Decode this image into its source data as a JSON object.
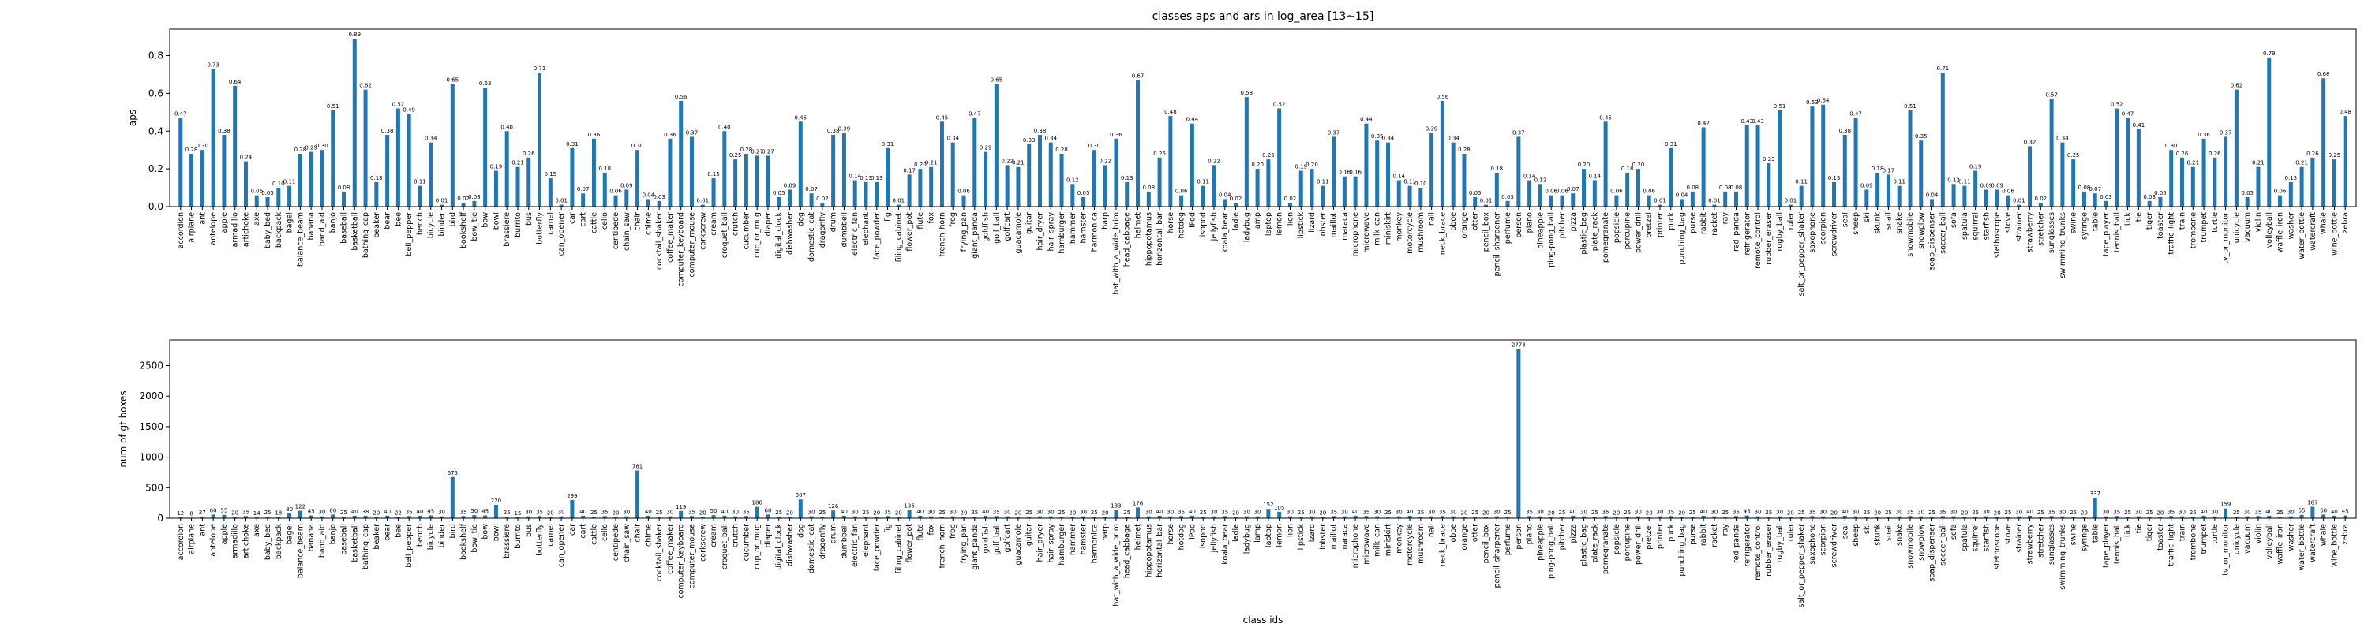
{
  "chart_data": [
    {
      "type": "bar",
      "title": "classes aps and ars in log_area [13~15]",
      "ylabel": "aps",
      "color": "#1f77b4",
      "categories": [
        "accordion",
        "airplane",
        "ant",
        "antelope",
        "apple",
        "armadillo",
        "artichoke",
        "axe",
        "baby_bed",
        "backpack",
        "bagel",
        "balance_beam",
        "banana",
        "band_aid",
        "banjo",
        "baseball",
        "basketball",
        "bathing_cap",
        "beaker",
        "bear",
        "bee",
        "bell_pepper",
        "bench",
        "bicycle",
        "binder",
        "bird",
        "bookshelf",
        "bow_tie",
        "bow",
        "bowl",
        "brassiere",
        "burrito",
        "bus",
        "butterfly",
        "camel",
        "can_opener",
        "car",
        "cart",
        "cattle",
        "cello",
        "centipede",
        "chain_saw",
        "chair",
        "chime",
        "cocktail_shaker",
        "coffee_maker",
        "computer_keyboard",
        "computer_mouse",
        "corkscrew",
        "cream",
        "croquet_ball",
        "crutch",
        "cucumber",
        "cup_or_mug",
        "diaper",
        "digital_clock",
        "dishwasher",
        "dog",
        "domestic_cat",
        "dragonfly",
        "drum",
        "dumbbell",
        "electric_fan",
        "elephant",
        "face_powder",
        "fig",
        "filing_cabinet",
        "flower_pot",
        "flute",
        "fox",
        "french_horn",
        "frog",
        "frying_pan",
        "giant_panda",
        "goldfish",
        "golf_ball",
        "golfcart",
        "guacamole",
        "guitar",
        "hair_dryer",
        "hair_spray",
        "hamburger",
        "hammer",
        "hamster",
        "harmonica",
        "harp",
        "hat_with_a_wide_brim",
        "head_cabbage",
        "helmet",
        "hippopotamus",
        "horizontal_bar",
        "horse",
        "hotdog",
        "iPod",
        "isopod",
        "jellyfish",
        "koala_bear",
        "ladle",
        "ladybug",
        "lamp",
        "laptop",
        "lemon",
        "lion",
        "lipstick",
        "lizard",
        "lobster",
        "maillot",
        "maraca",
        "microphone",
        "microwave",
        "milk_can",
        "miniskirt",
        "monkey",
        "motorcycle",
        "mushroom",
        "nail",
        "neck_brace",
        "oboe",
        "orange",
        "otter",
        "pencil_box",
        "pencil_sharpener",
        "perfume",
        "person",
        "piano",
        "pineapple",
        "ping-pong_ball",
        "pitcher",
        "pizza",
        "plastic_bag",
        "plate_rack",
        "pomegranate",
        "popsicle",
        "porcupine",
        "power_drill",
        "pretzel",
        "printer",
        "puck",
        "punching_bag",
        "purse",
        "rabbit",
        "racket",
        "ray",
        "red_panda",
        "refrigerator",
        "remote_control",
        "rubber_eraser",
        "rugby_ball",
        "ruler",
        "salt_or_pepper_shaker",
        "saxophone",
        "scorpion",
        "screwdriver",
        "seal",
        "sheep",
        "ski",
        "skunk",
        "snail",
        "snake",
        "snowmobile",
        "snowplow",
        "soap_dispenser",
        "soccer_ball",
        "sofa",
        "spatula",
        "squirrel",
        "starfish",
        "stethoscope",
        "stove",
        "strainer",
        "strawberry",
        "stretcher",
        "sunglasses",
        "swimming_trunks",
        "swine",
        "syringe",
        "table",
        "tape_player",
        "tennis_ball",
        "tick",
        "tie",
        "tiger",
        "toaster",
        "traffic_light",
        "train",
        "trombone",
        "trumpet",
        "turtle",
        "tv_or_monitor",
        "unicycle",
        "vacuum",
        "violin",
        "volleyball",
        "waffle_iron",
        "washer",
        "water_bottle",
        "watercraft",
        "whale",
        "wine_bottle",
        "zebra"
      ],
      "values": [
        0.47,
        0.28,
        0.3,
        0.73,
        0.38,
        0.64,
        0.24,
        0.06,
        0.05,
        0.1,
        0.11,
        0.28,
        0.29,
        0.3,
        0.51,
        0.08,
        0.89,
        0.62,
        0.13,
        0.38,
        0.52,
        0.49,
        0.11,
        0.34,
        0.01,
        0.65,
        0.02,
        0.03,
        0.63,
        0.19,
        0.4,
        0.21,
        0.26,
        0.71,
        0.15,
        0.01,
        0.31,
        0.07,
        0.36,
        0.18,
        0.06,
        0.09,
        0.3,
        0.04,
        0.03,
        0.36,
        0.56,
        0.37,
        0.01,
        0.15,
        0.4,
        0.25,
        0.28,
        0.27,
        0.27,
        0.05,
        0.09,
        0.45,
        0.07,
        0.02,
        0.38,
        0.39,
        0.14,
        0.13,
        0.13,
        0.31,
        0.01,
        0.17,
        0.2,
        0.21,
        0.45,
        0.34,
        0.06,
        0.47,
        0.29,
        0.65,
        0.22,
        0.21,
        0.33,
        0.38,
        0.34,
        0.28,
        0.12,
        0.05,
        0.3,
        0.22,
        0.36,
        0.13,
        0.67,
        0.08,
        0.26,
        0.48,
        0.06,
        0.44,
        0.11,
        0.22,
        0.04,
        0.02,
        0.58,
        0.2,
        0.25,
        0.52,
        0.02,
        0.19,
        0.2,
        0.11,
        0.37,
        0.16,
        0.16,
        0.44,
        0.35,
        0.34,
        0.14,
        0.11,
        0.1,
        0.39,
        0.56,
        0.34,
        0.28,
        0.05,
        0.01,
        0.18,
        0.03,
        0.37,
        0.14,
        0.12,
        0.06,
        0.06,
        0.07,
        0.2,
        0.14,
        0.45,
        0.06,
        0.18,
        0.2,
        0.06,
        0.01,
        0.31,
        0.04,
        0.08,
        0.42,
        0.01,
        0.08,
        0.08,
        0.43,
        0.43,
        0.23,
        0.51,
        0.01,
        0.11,
        0.53,
        0.54,
        0.13,
        0.38,
        0.47,
        0.09,
        0.18,
        0.17,
        0.11,
        0.51,
        0.35,
        0.04,
        0.71,
        0.12,
        0.11,
        0.19,
        0.09,
        0.09,
        0.06,
        0.01,
        0.32,
        0.02,
        0.57,
        0.34,
        0.25,
        0.08,
        0.07,
        0.03,
        0.52,
        0.47,
        0.41,
        0.03,
        0.05,
        0.3,
        0.26,
        0.21,
        0.36,
        0.26,
        0.37,
        0.62,
        0.05,
        0.21,
        0.79,
        0.06,
        0.13,
        0.21,
        0.26,
        0.68,
        0.25,
        0.48
      ],
      "value_labels": [
        "0.47",
        "0.28",
        "0.30",
        "0.73",
        "0.38",
        "0.64",
        "0.24",
        "0.06",
        "0.05",
        "0.10",
        "0.11",
        "0.28",
        "0.29",
        "0.30",
        "0.51",
        "0.08",
        "0.89",
        "0.62",
        "0.13",
        "0.38",
        "0.52",
        "0.49",
        "0.11",
        "0.34",
        "0.01",
        "0.65",
        "0.02",
        "0.03",
        "0.63",
        "0.19",
        "0.40",
        "0.21",
        "0.26",
        "0.71",
        "0.15",
        "0.01",
        "0.31",
        "0.07",
        "0.36",
        "0.18",
        "0.06",
        "0.09",
        "0.30",
        "0.04",
        "0.03",
        "0.36",
        "0.56",
        "0.37",
        "0.01",
        "0.15",
        "0.40",
        "0.25",
        "0.28",
        "0.27",
        "0.27",
        "0.05",
        "0.09",
        "0.45",
        "0.07",
        "0.02",
        "0.38",
        "0.39",
        "0.14",
        "0.13",
        "0.13",
        "0.31",
        "0.01",
        "0.17",
        "0.20",
        "0.21",
        "0.45",
        "0.34",
        "0.06",
        "0.47",
        "0.29",
        "0.65",
        "0.22",
        "0.21",
        "0.33",
        "0.38",
        "0.34",
        "0.28",
        "0.12",
        "0.05",
        "0.30",
        "0.22",
        "0.36",
        "0.13",
        "0.67",
        "0.08",
        "0.26",
        "0.48",
        "0.06",
        "0.44",
        "0.11",
        "0.22",
        "0.04",
        "0.02",
        "0.58",
        "0.20",
        "0.25",
        "0.52",
        "0.02",
        "0.19",
        "0.20",
        "0.11",
        "0.37",
        "0.16",
        "0.16",
        "0.44",
        "0.35",
        "0.34",
        "0.14",
        "0.11",
        "0.10",
        "0.39",
        "0.56",
        "0.34",
        "0.28",
        "0.05",
        "0.01",
        "0.18",
        "0.03",
        "0.37",
        "0.14",
        "0.12",
        "0.06",
        "0.06",
        "0.07",
        "0.20",
        "0.14",
        "0.45",
        "0.06",
        "0.18",
        "0.20",
        "0.06",
        "0.01",
        "0.31",
        "0.04",
        "0.08",
        "0.42",
        "0.01",
        "0.08",
        "0.08",
        "0.43",
        "0.43",
        "0.23",
        "0.51",
        "0.01",
        "0.11",
        "0.53",
        "0.54",
        "0.13",
        "0.38",
        "0.47",
        "0.09",
        "0.18",
        "0.17",
        "0.11",
        "0.51",
        "0.35",
        "0.04",
        "0.71",
        "0.12",
        "0.11",
        "0.19",
        "0.09",
        "0.09",
        "0.06",
        "0.01",
        "0.32",
        "0.02",
        "0.57",
        "0.34",
        "0.25",
        "0.08",
        "0.07",
        "0.03",
        "0.52",
        "0.47",
        "0.41",
        "0.03",
        "0.05",
        "0.30",
        "0.26",
        "0.21",
        "0.36",
        "0.26",
        "0.37",
        "0.62",
        "0.05",
        "0.21",
        "0.79",
        "0.06",
        "0.13",
        "0.21",
        "0.26",
        "0.68",
        "0.25",
        "0.48"
      ],
      "ylim": [
        0,
        0.94
      ],
      "yticks": [
        {
          "value": 0,
          "label": "0.0"
        },
        0.2,
        0.4,
        0.6,
        0.8
      ]
    },
    {
      "type": "bar",
      "ylabel": "num of gt boxes",
      "xlabel": "class ids",
      "color": "#1f77b4",
      "categories": [
        "accordion",
        "airplane",
        "ant",
        "antelope",
        "apple",
        "armadillo",
        "artichoke",
        "axe",
        "baby_bed",
        "backpack",
        "bagel",
        "balance_beam",
        "banana",
        "band_aid",
        "banjo",
        "baseball",
        "basketball",
        "bathing_cap",
        "beaker",
        "bear",
        "bee",
        "bell_pepper",
        "bench",
        "bicycle",
        "binder",
        "bird",
        "bookshelf",
        "bow_tie",
        "bow",
        "bowl",
        "brassiere",
        "burrito",
        "bus",
        "butterfly",
        "camel",
        "can_opener",
        "car",
        "cart",
        "cattle",
        "cello",
        "centipede",
        "chain_saw",
        "chair",
        "chime",
        "cocktail_shaker",
        "coffee_maker",
        "computer_keyboard",
        "computer_mouse",
        "corkscrew",
        "cream",
        "croquet_ball",
        "crutch",
        "cucumber",
        "cup_or_mug",
        "diaper",
        "digital_clock",
        "dishwasher",
        "dog",
        "domestic_cat",
        "dragonfly",
        "drum",
        "dumbbell",
        "electric_fan",
        "elephant",
        "face_powder",
        "fig",
        "filing_cabinet",
        "flower_pot",
        "flute",
        "fox",
        "french_horn",
        "frog",
        "frying_pan",
        "giant_panda",
        "goldfish",
        "golf_ball",
        "golfcart",
        "guacamole",
        "guitar",
        "hair_dryer",
        "hair_spray",
        "hamburger",
        "hammer",
        "hamster",
        "harmonica",
        "harp",
        "hat_with_a_wide_brim",
        "head_cabbage",
        "helmet",
        "hippopotamus",
        "horizontal_bar",
        "horse",
        "hotdog",
        "iPod",
        "isopod",
        "jellyfish",
        "koala_bear",
        "ladle",
        "ladybug",
        "lamp",
        "laptop",
        "lemon",
        "lion",
        "lipstick",
        "lizard",
        "lobster",
        "maillot",
        "maraca",
        "microphone",
        "microwave",
        "milk_can",
        "miniskirt",
        "monkey",
        "motorcycle",
        "mushroom",
        "nail",
        "neck_brace",
        "oboe",
        "orange",
        "otter",
        "pencil_box",
        "pencil_sharpener",
        "perfume",
        "person",
        "piano",
        "pineapple",
        "ping-pong_ball",
        "pitcher",
        "pizza",
        "plastic_bag",
        "plate_rack",
        "pomegranate",
        "popsicle",
        "porcupine",
        "power_drill",
        "pretzel",
        "printer",
        "puck",
        "punching_bag",
        "purse",
        "rabbit",
        "racket",
        "ray",
        "red_panda",
        "refrigerator",
        "remote_control",
        "rubber_eraser",
        "rugby_ball",
        "ruler",
        "salt_or_pepper_shaker",
        "saxophone",
        "scorpion",
        "screwdriver",
        "seal",
        "sheep",
        "ski",
        "skunk",
        "snail",
        "snake",
        "snowmobile",
        "snowplow",
        "soap_dispenser",
        "soccer_ball",
        "sofa",
        "spatula",
        "squirrel",
        "starfish",
        "stethoscope",
        "stove",
        "strainer",
        "strawberry",
        "stretcher",
        "sunglasses",
        "swimming_trunks",
        "swine",
        "syringe",
        "table",
        "tape_player",
        "tennis_ball",
        "tick",
        "tie",
        "tiger",
        "toaster",
        "traffic_light",
        "train",
        "trombone",
        "trumpet",
        "turtle",
        "tv_or_monitor",
        "unicycle",
        "vacuum",
        "violin",
        "volleyball",
        "waffle_iron",
        "washer",
        "water_bottle",
        "watercraft",
        "whale",
        "wine_bottle",
        "zebra"
      ],
      "values": [
        12,
        8,
        27,
        60,
        55,
        20,
        35,
        14,
        25,
        18,
        80,
        122,
        45,
        30,
        60,
        25,
        40,
        38,
        20,
        40,
        22,
        35,
        40,
        45,
        30,
        675,
        35,
        50,
        45,
        220,
        25,
        15,
        30,
        35,
        20,
        30,
        299,
        40,
        25,
        35,
        20,
        30,
        781,
        40,
        25,
        30,
        119,
        35,
        20,
        50,
        40,
        30,
        35,
        186,
        60,
        25,
        20,
        307,
        30,
        25,
        126,
        40,
        30,
        25,
        20,
        35,
        20,
        136,
        40,
        30,
        25,
        30,
        20,
        25,
        40,
        35,
        30,
        20,
        25,
        30,
        30,
        25,
        20,
        30,
        25,
        20,
        133,
        25,
        176,
        30,
        40,
        30,
        35,
        40,
        25,
        30,
        35,
        20,
        30,
        30,
        152,
        105,
        30,
        25,
        30,
        20,
        35,
        30,
        40,
        35,
        30,
        25,
        30,
        40,
        25,
        30,
        35,
        30,
        20,
        25,
        20,
        30,
        25,
        2773,
        35,
        30,
        20,
        25,
        40,
        30,
        25,
        35,
        20,
        25,
        30,
        20,
        30,
        35,
        20,
        25,
        40,
        30,
        25,
        35,
        45,
        30,
        25,
        30,
        20,
        25,
        35,
        30,
        20,
        40,
        30,
        25,
        20,
        25,
        30,
        35,
        30,
        25,
        35,
        30,
        20,
        25,
        30,
        20,
        25,
        30,
        40,
        25,
        35,
        30,
        25,
        20,
        337,
        30,
        35,
        25,
        30,
        25,
        20,
        35,
        30,
        25,
        40,
        30,
        159,
        25,
        30,
        35,
        40,
        25,
        30,
        55,
        187,
        60,
        40,
        45
      ],
      "ylim": [
        0,
        2920
      ],
      "yticks": [
        0,
        500,
        1000,
        1500,
        2000,
        2500
      ]
    }
  ]
}
